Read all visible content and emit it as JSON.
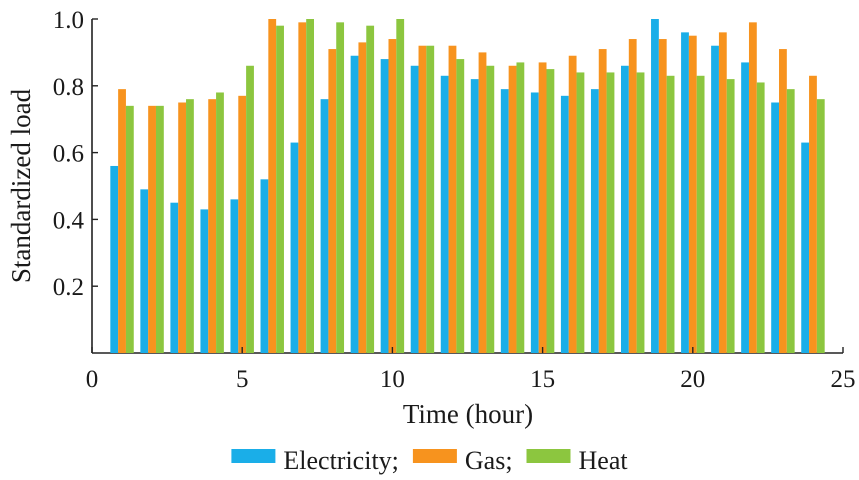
{
  "chart_data": {
    "type": "bar",
    "title": "",
    "xlabel": "Time (hour)",
    "ylabel": "Standardized load",
    "x": [
      1,
      2,
      3,
      4,
      5,
      6,
      7,
      8,
      9,
      10,
      11,
      12,
      13,
      14,
      15,
      16,
      17,
      18,
      19,
      20,
      21,
      22,
      23,
      24
    ],
    "xlim": [
      0,
      25
    ],
    "ylim": [
      0,
      1.0
    ],
    "xticks": [
      0,
      5,
      10,
      15,
      20,
      25
    ],
    "yticks": [
      0.2,
      0.4,
      0.6,
      0.8,
      1.0
    ],
    "xtick_labels": [
      "0",
      "5",
      "10",
      "15",
      "20",
      "25"
    ],
    "ytick_labels": [
      "0.2",
      "0.4",
      "0.6",
      "0.8",
      "1.0"
    ],
    "grid": false,
    "legend_position": "bottom",
    "series": [
      {
        "name": "Electricity;",
        "color": "#1aaee8",
        "values": [
          0.56,
          0.49,
          0.45,
          0.43,
          0.46,
          0.52,
          0.63,
          0.76,
          0.89,
          0.88,
          0.86,
          0.83,
          0.82,
          0.79,
          0.78,
          0.77,
          0.79,
          0.86,
          1.0,
          0.96,
          0.92,
          0.87,
          0.75,
          0.63
        ]
      },
      {
        "name": "Gas;",
        "color": "#f7931e",
        "values": [
          0.79,
          0.74,
          0.75,
          0.76,
          0.77,
          1.0,
          0.99,
          0.91,
          0.93,
          0.94,
          0.92,
          0.92,
          0.9,
          0.86,
          0.87,
          0.89,
          0.91,
          0.94,
          0.94,
          0.95,
          0.96,
          0.99,
          0.91,
          0.83
        ]
      },
      {
        "name": "Heat",
        "color": "#8cc63f",
        "values": [
          0.74,
          0.74,
          0.76,
          0.78,
          0.86,
          0.98,
          1.0,
          0.99,
          0.98,
          1.0,
          0.92,
          0.88,
          0.86,
          0.87,
          0.85,
          0.84,
          0.84,
          0.84,
          0.83,
          0.83,
          0.82,
          0.81,
          0.79,
          0.76
        ]
      }
    ]
  }
}
